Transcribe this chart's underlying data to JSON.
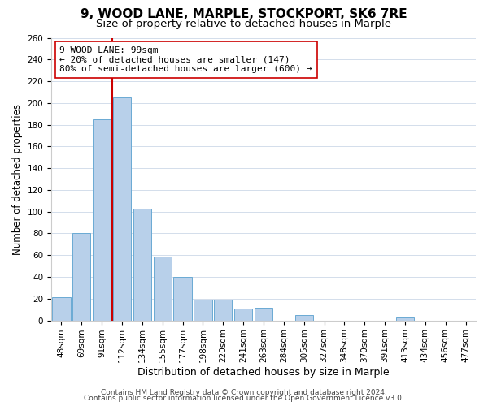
{
  "title": "9, WOOD LANE, MARPLE, STOCKPORT, SK6 7RE",
  "subtitle": "Size of property relative to detached houses in Marple",
  "xlabel": "Distribution of detached houses by size in Marple",
  "ylabel": "Number of detached properties",
  "bin_labels": [
    "48sqm",
    "69sqm",
    "91sqm",
    "112sqm",
    "134sqm",
    "155sqm",
    "177sqm",
    "198sqm",
    "220sqm",
    "241sqm",
    "263sqm",
    "284sqm",
    "305sqm",
    "327sqm",
    "348sqm",
    "370sqm",
    "391sqm",
    "413sqm",
    "434sqm",
    "456sqm",
    "477sqm"
  ],
  "bar_heights": [
    21,
    80,
    185,
    205,
    103,
    59,
    40,
    19,
    19,
    11,
    12,
    0,
    5,
    0,
    0,
    0,
    0,
    3,
    0,
    0,
    0
  ],
  "bar_color": "#b8d0ea",
  "bar_edge_color": "#6aaad4",
  "highlight_line_color": "#cc0000",
  "ylim": [
    0,
    260
  ],
  "yticks": [
    0,
    20,
    40,
    60,
    80,
    100,
    120,
    140,
    160,
    180,
    200,
    220,
    240,
    260
  ],
  "annotation_line1": "9 WOOD LANE: 99sqm",
  "annotation_line2": "← 20% of detached houses are smaller (147)",
  "annotation_line3": "80% of semi-detached houses are larger (600) →",
  "annotation_box_color": "#ffffff",
  "annotation_box_edge_color": "#cc0000",
  "footer_line1": "Contains HM Land Registry data © Crown copyright and database right 2024.",
  "footer_line2": "Contains public sector information licensed under the Open Government Licence v3.0.",
  "background_color": "#ffffff",
  "grid_color": "#ccd8e8",
  "title_fontsize": 11,
  "subtitle_fontsize": 9.5,
  "xlabel_fontsize": 9,
  "ylabel_fontsize": 8.5,
  "tick_fontsize": 7.5,
  "footer_fontsize": 6.5,
  "annotation_fontsize": 8
}
